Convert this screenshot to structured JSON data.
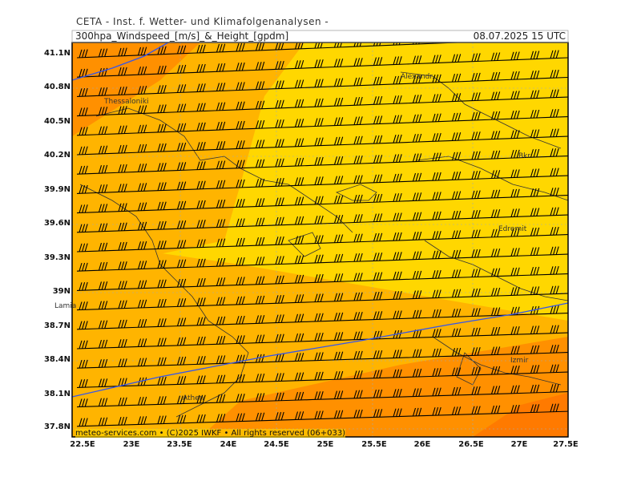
{
  "header": {
    "title": "CETA - Inst. f. Wetter- und Klimafolgenanalysen -",
    "subtitle": "300hpa_Windspeed_[m/s]_&_Height_[gpdm]",
    "datetime": "08.07.2025  15 UTC"
  },
  "axes": {
    "lat_ticks": [
      "41.1N",
      "40.8N",
      "40.5N",
      "40.2N",
      "39.9N",
      "39.6N",
      "39.3N",
      "39N",
      "38.7N",
      "38.4N",
      "38.1N",
      "37.8N"
    ],
    "lon_ticks": [
      "22.5E",
      "23E",
      "23.5E",
      "24E",
      "24.5E",
      "25E",
      "25.5E",
      "26E",
      "26.5E",
      "27E",
      "27.5E"
    ]
  },
  "cities": [
    {
      "name": "Thessaloniki"
    },
    {
      "name": "Alexandr."
    },
    {
      "name": "Bkr"
    },
    {
      "name": "Edremit"
    },
    {
      "name": "Lamia"
    },
    {
      "name": "Izmir"
    },
    {
      "name": "Athen"
    }
  ],
  "credit": "meteo-services.com • (C)2025 IWKF • All rights reserved (06+033)",
  "colors": {
    "wind_fill_light": "#ffd700",
    "wind_fill_mid": "#ffb400",
    "wind_fill_strong": "#ff9000",
    "wind_fill_max": "#ff7a00",
    "barb": "#000000",
    "height_contour": "#3355ee",
    "coast": "#333333"
  }
}
